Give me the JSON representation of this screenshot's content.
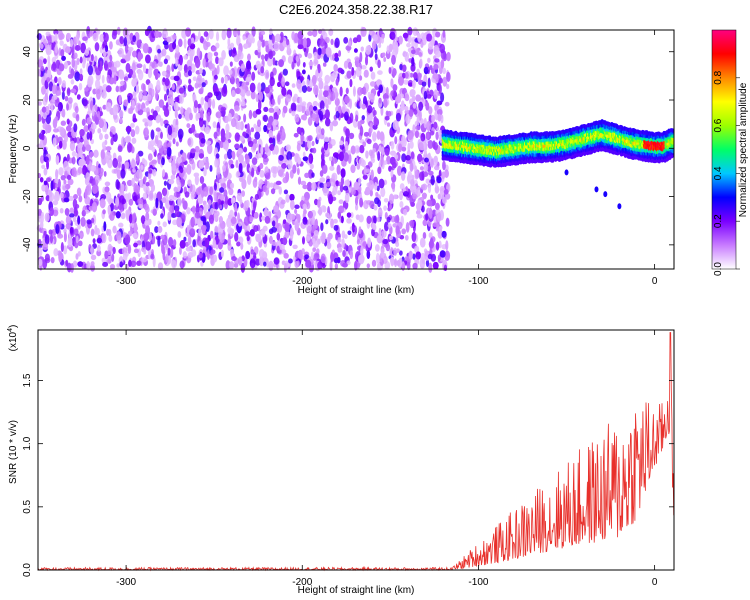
{
  "figure_title": "C2E6.2024.358.22.38.R17",
  "chart_data": [
    {
      "type": "heatmap",
      "title": "C2E6.2024.358.22.38.R17",
      "xlabel": "Height of straight line (km)",
      "ylabel": "Frequency (Hz)",
      "xlim": [
        -350,
        11
      ],
      "ylim": [
        -50,
        49
      ],
      "xticks": [
        -300,
        -200,
        -100,
        0
      ],
      "yticks": [
        -40,
        -20,
        0,
        20,
        40
      ],
      "xtick_labels": [
        "-300",
        "-200",
        "-100",
        "0"
      ],
      "ytick_labels": [
        "-40",
        "-20",
        "0",
        "20",
        "40"
      ],
      "colorbar": {
        "label": "Normalized spectral amplitude",
        "range": [
          0,
          1
        ],
        "ticks": [
          0.0,
          0.2,
          0.4,
          0.6,
          0.8
        ],
        "tick_labels": [
          "0.0",
          "0.2",
          "0.4",
          "0.6",
          "0.8"
        ],
        "colors": [
          "#ffffff",
          "#c87bff",
          "#7a00ff",
          "#0000ff",
          "#00c8ff",
          "#00ff66",
          "#9cff00",
          "#ffff00",
          "#ff8800",
          "#ff0000",
          "#ff0080"
        ]
      },
      "noise_region": {
        "x_range": [
          -350,
          -117
        ],
        "freq_range": [
          -50,
          49
        ],
        "amplitude_range": [
          0.05,
          0.25
        ]
      },
      "signal_band": {
        "x_range": [
          -120,
          11
        ],
        "center_freq": [
          {
            "x": -120,
            "f": 2
          },
          {
            "x": -110,
            "f": 1
          },
          {
            "x": -100,
            "f": 0
          },
          {
            "x": -90,
            "f": -1
          },
          {
            "x": -80,
            "f": 0
          },
          {
            "x": -70,
            "f": 1
          },
          {
            "x": -60,
            "f": 1
          },
          {
            "x": -50,
            "f": 2
          },
          {
            "x": -40,
            "f": 4
          },
          {
            "x": -30,
            "f": 6
          },
          {
            "x": -20,
            "f": 4
          },
          {
            "x": -10,
            "f": 2
          },
          {
            "x": 0,
            "f": 1
          },
          {
            "x": 5,
            "f": 1
          },
          {
            "x": 11,
            "f": 3
          }
        ],
        "peak_amplitude": 0.95,
        "peak_x": 0
      },
      "stray_points": [
        {
          "x": -50,
          "f": -10
        },
        {
          "x": -33,
          "f": -17
        },
        {
          "x": -28,
          "f": -19
        },
        {
          "x": -20,
          "f": -24
        }
      ]
    },
    {
      "type": "line",
      "title": "",
      "xlabel": "Height of straight line (km)",
      "ylabel": "SNR (10 * v/v)",
      "y_multiplier_label": "(x10",
      "y_multiplier_exp": "4",
      "xlim": [
        -350,
        11
      ],
      "ylim": [
        0,
        1.9
      ],
      "xticks": [
        -300,
        -200,
        -100,
        0
      ],
      "yticks": [
        0.0,
        0.5,
        1.0,
        1.5
      ],
      "xtick_labels": [
        "-300",
        "-200",
        "-100",
        "0"
      ],
      "ytick_labels": [
        "0.0",
        "0.5",
        "1.0",
        "1.5"
      ],
      "series": [
        {
          "name": "SNR",
          "color": "#e8302b",
          "envelope": [
            {
              "x": -350,
              "base": 0.0,
              "amp": 0.02
            },
            {
              "x": -115,
              "base": 0.0,
              "amp": 0.02
            },
            {
              "x": -100,
              "base": 0.03,
              "amp": 0.2
            },
            {
              "x": -80,
              "base": 0.08,
              "amp": 0.4
            },
            {
              "x": -60,
              "base": 0.15,
              "amp": 0.6
            },
            {
              "x": -40,
              "base": 0.2,
              "amp": 0.8
            },
            {
              "x": -20,
              "base": 0.25,
              "amp": 1.0
            },
            {
              "x": -10,
              "base": 0.4,
              "amp": 1.1
            },
            {
              "x": 0,
              "base": 0.8,
              "amp": 0.5
            },
            {
              "x": 5,
              "base": 0.95,
              "amp": 0.4
            },
            {
              "x": 9,
              "base": 1.1,
              "amp": 0.8
            },
            {
              "x": 11,
              "base": 0.3,
              "amp": 0.1
            }
          ],
          "peak_value": 1.88,
          "peak_x": 9
        }
      ]
    }
  ]
}
